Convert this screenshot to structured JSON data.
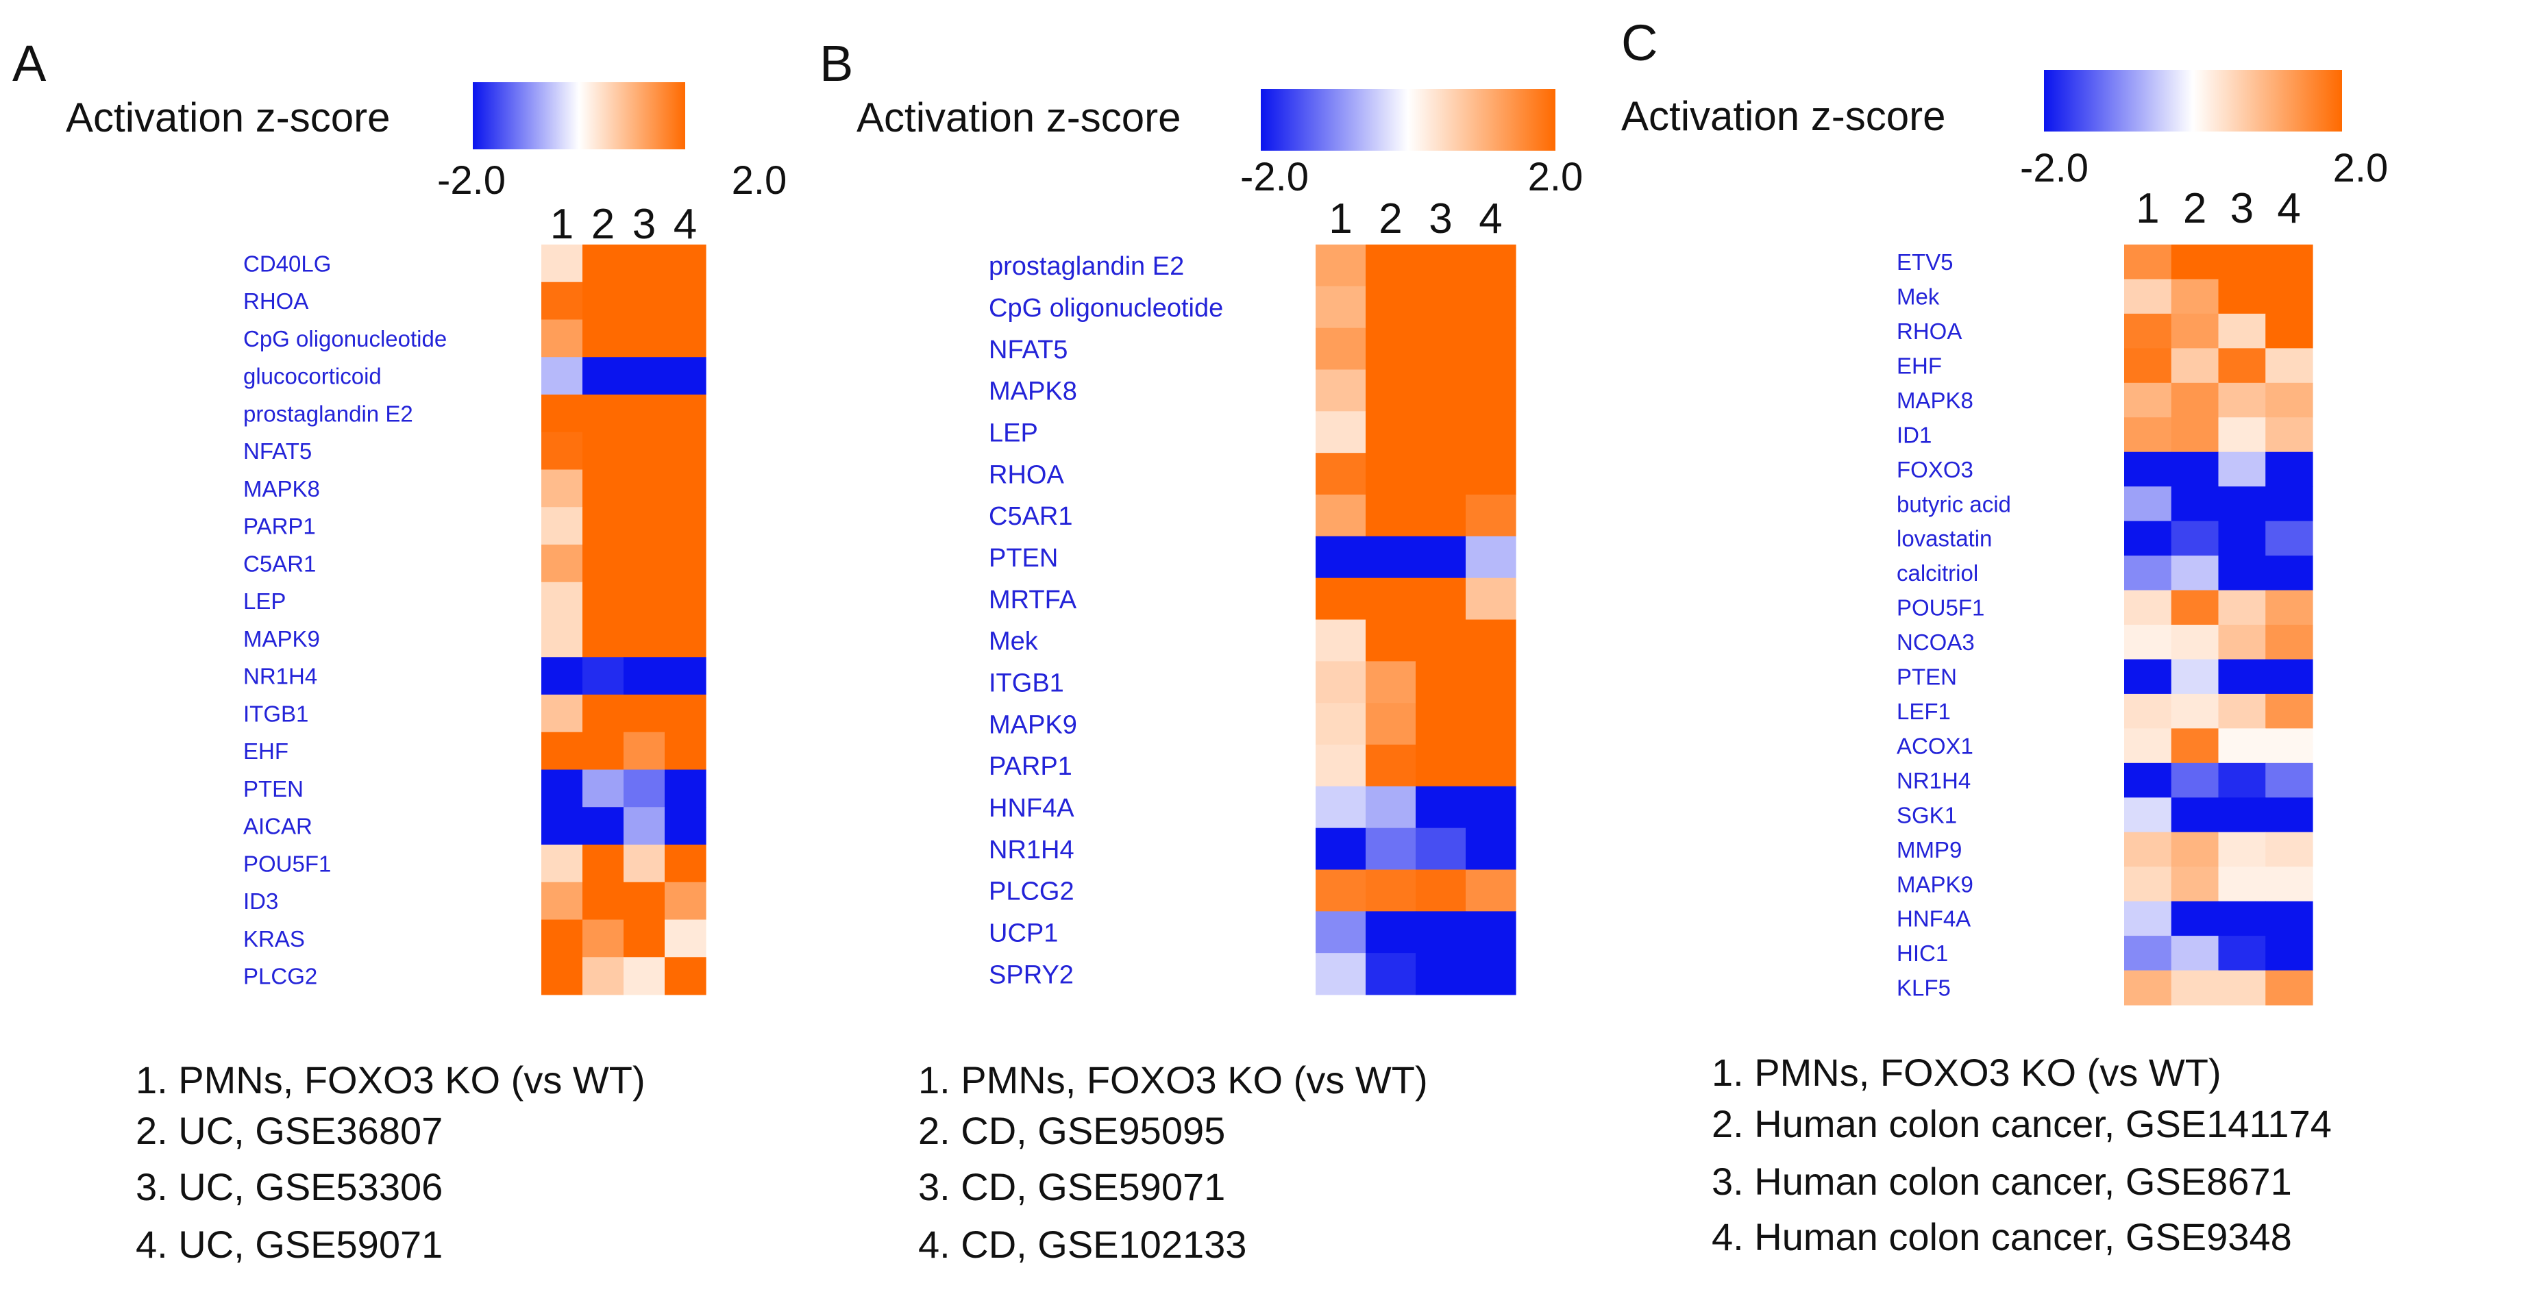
{
  "scale": {
    "title": "Activation z-score",
    "min": -2.0,
    "max": 2.0,
    "min_label": "-2.0",
    "max_label": "2.0",
    "colors": {
      "low": "#0a14ee",
      "mid": "#ffffff",
      "high": "#ff6a00"
    }
  },
  "chart_data": [
    {
      "type": "heatmap",
      "panel": "A",
      "columns": [
        "1",
        "2",
        "3",
        "4"
      ],
      "rows": [
        "CD40LG",
        "RHOA",
        "CpG oligonucleotide",
        "glucocorticoid",
        "prostaglandin E2",
        "NFAT5",
        "MAPK8",
        "PARP1",
        "C5AR1",
        "LEP",
        "MAPK9",
        "NR1H4",
        "ITGB1",
        "EHF",
        "PTEN",
        "AICAR",
        "POU5F1",
        "ID3",
        "KRAS",
        "PLCG2"
      ],
      "values": [
        [
          0.4,
          2.0,
          2.0,
          2.0
        ],
        [
          1.9,
          2.0,
          2.0,
          2.0
        ],
        [
          1.3,
          2.0,
          2.0,
          2.0
        ],
        [
          -0.6,
          -2.0,
          -2.0,
          -2.0
        ],
        [
          2.0,
          2.0,
          2.0,
          2.0
        ],
        [
          1.9,
          2.0,
          2.0,
          2.0
        ],
        [
          0.9,
          2.0,
          2.0,
          2.0
        ],
        [
          0.5,
          2.0,
          2.0,
          2.0
        ],
        [
          1.2,
          2.0,
          2.0,
          2.0
        ],
        [
          0.5,
          2.0,
          2.0,
          2.0
        ],
        [
          0.5,
          2.0,
          2.0,
          2.0
        ],
        [
          -2.0,
          -1.8,
          -2.0,
          -2.0
        ],
        [
          0.8,
          2.0,
          2.0,
          2.0
        ],
        [
          2.0,
          2.0,
          1.5,
          2.0
        ],
        [
          -2.0,
          -0.8,
          -1.2,
          -2.0
        ],
        [
          -2.0,
          -2.0,
          -0.8,
          -2.0
        ],
        [
          0.5,
          2.0,
          0.6,
          2.0
        ],
        [
          1.2,
          2.0,
          2.0,
          1.3
        ],
        [
          2.0,
          1.4,
          2.0,
          0.3
        ],
        [
          2.0,
          0.7,
          0.3,
          2.0
        ]
      ],
      "legend": [
        "1. PMNs, FOXO3 KO (vs WT)",
        "2. UC, GSE36807",
        "3. UC, GSE53306",
        "4. UC, GSE59071"
      ]
    },
    {
      "type": "heatmap",
      "panel": "B",
      "columns": [
        "1",
        "2",
        "3",
        "4"
      ],
      "rows": [
        "prostaglandin E2",
        "CpG oligonucleotide",
        "NFAT5",
        "MAPK8",
        "LEP",
        "RHOA",
        "C5AR1",
        "PTEN",
        "MRTFA",
        "Mek",
        "ITGB1",
        "MAPK9",
        "PARP1",
        "HNF4A",
        "NR1H4",
        "PLCG2",
        "UCP1",
        "SPRY2"
      ],
      "values": [
        [
          1.2,
          2.0,
          2.0,
          2.0
        ],
        [
          1.0,
          2.0,
          2.0,
          2.0
        ],
        [
          1.3,
          2.0,
          2.0,
          2.0
        ],
        [
          0.8,
          2.0,
          2.0,
          2.0
        ],
        [
          0.4,
          2.0,
          2.0,
          2.0
        ],
        [
          1.8,
          2.0,
          2.0,
          2.0
        ],
        [
          1.2,
          2.0,
          2.0,
          1.7
        ],
        [
          -2.0,
          -2.0,
          -2.0,
          -0.6
        ],
        [
          2.0,
          2.0,
          2.0,
          0.8
        ],
        [
          0.4,
          2.0,
          2.0,
          2.0
        ],
        [
          0.6,
          1.3,
          2.0,
          2.0
        ],
        [
          0.5,
          1.4,
          2.0,
          2.0
        ],
        [
          0.4,
          1.9,
          2.0,
          2.0
        ],
        [
          -0.4,
          -0.7,
          -2.0,
          -2.0
        ],
        [
          -2.0,
          -1.2,
          -1.5,
          -2.0
        ],
        [
          1.7,
          1.8,
          1.9,
          1.5
        ],
        [
          -1.0,
          -2.0,
          -2.0,
          -2.0
        ],
        [
          -0.4,
          -1.8,
          -2.0,
          -2.0
        ]
      ],
      "legend": [
        "1. PMNs, FOXO3 KO (vs WT)",
        "2. CD, GSE95095",
        "3. CD, GSE59071",
        "4. CD, GSE102133"
      ]
    },
    {
      "type": "heatmap",
      "panel": "C",
      "columns": [
        "1",
        "2",
        "3",
        "4"
      ],
      "rows": [
        "ETV5",
        "Mek",
        "RHOA",
        "EHF",
        "MAPK8",
        "ID1",
        "FOXO3",
        "butyric acid",
        "lovastatin",
        "calcitriol",
        "POU5F1",
        "NCOA3",
        "PTEN",
        "LEF1",
        "ACOX1",
        "NR1H4",
        "SGK1",
        "MMP9",
        "MAPK9",
        "HNF4A",
        "HIC1",
        "KLF5"
      ],
      "values": [
        [
          1.5,
          2.0,
          2.0,
          2.0
        ],
        [
          0.6,
          1.2,
          2.0,
          2.0
        ],
        [
          1.7,
          1.3,
          0.5,
          2.0
        ],
        [
          1.8,
          0.7,
          1.8,
          0.5
        ],
        [
          1.0,
          1.4,
          0.8,
          1.0
        ],
        [
          1.3,
          1.4,
          0.3,
          0.8
        ],
        [
          -2.0,
          -2.0,
          -0.5,
          -2.0
        ],
        [
          -0.8,
          -2.0,
          -2.0,
          -2.0
        ],
        [
          -2.0,
          -1.6,
          -2.0,
          -1.4
        ],
        [
          -1.0,
          -0.5,
          -2.0,
          -2.0
        ],
        [
          0.4,
          1.7,
          0.6,
          1.2
        ],
        [
          0.2,
          0.3,
          0.8,
          1.4
        ],
        [
          -2.0,
          -0.3,
          -2.0,
          -2.0
        ],
        [
          0.4,
          0.3,
          0.6,
          1.4
        ],
        [
          0.3,
          1.7,
          0.1,
          0.1
        ],
        [
          -2.0,
          -1.3,
          -1.8,
          -1.2
        ],
        [
          -0.3,
          -2.0,
          -2.0,
          -2.0
        ],
        [
          0.7,
          1.0,
          0.3,
          0.4
        ],
        [
          0.5,
          0.9,
          0.2,
          0.2
        ],
        [
          -0.4,
          -2.0,
          -2.0,
          -2.0
        ],
        [
          -1.0,
          -0.5,
          -1.8,
          -2.0
        ],
        [
          1.0,
          0.5,
          0.5,
          1.4
        ]
      ],
      "legend": [
        "1. PMNs, FOXO3 KO (vs WT)",
        "2. Human colon cancer, GSE141174",
        "3. Human colon cancer, GSE8671",
        "4. Human colon cancer, GSE9348"
      ]
    }
  ]
}
